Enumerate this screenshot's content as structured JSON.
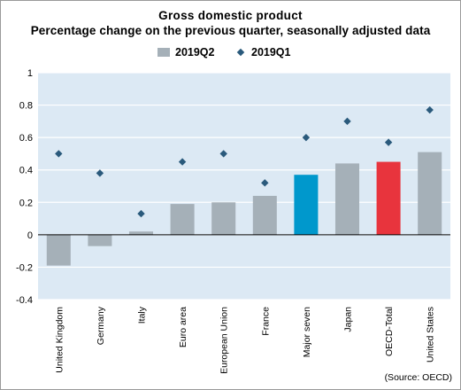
{
  "title": "Gross domestic product",
  "subtitle": "Percentage change on the previous quarter, seasonally adjusted data",
  "source": "(Source: OECD)",
  "legend": {
    "bar_label": "2019Q2",
    "marker_label": "2019Q1"
  },
  "colors": {
    "bar": "#a5b0b8",
    "highlight_blue": "#0098cc",
    "highlight_red": "#e8343d",
    "marker": "#2a5a7c",
    "background": "#dce9f4",
    "grid": "#ffffff"
  },
  "chart_data": {
    "type": "bar",
    "categories": [
      "United Kingdom",
      "Germany",
      "Italy",
      "Euro area",
      "European Union",
      "France",
      "Major seven",
      "Japan",
      "OECD-Total",
      "United States"
    ],
    "series": [
      {
        "name": "2019Q2",
        "kind": "bar",
        "values": [
          -0.19,
          -0.07,
          0.02,
          0.19,
          0.2,
          0.24,
          0.37,
          0.44,
          0.45,
          0.51
        ]
      },
      {
        "name": "2019Q1",
        "kind": "marker",
        "values": [
          0.5,
          0.38,
          0.13,
          0.45,
          0.5,
          0.32,
          0.6,
          0.7,
          0.57,
          0.77
        ]
      }
    ],
    "highlight": {
      "Major seven": "blue",
      "OECD-Total": "red"
    },
    "ylim": [
      -0.4,
      1
    ],
    "yticks": [
      -0.4,
      -0.2,
      0,
      0.2,
      0.4,
      0.6,
      0.8,
      1
    ],
    "ytick_labels": [
      "-0.4",
      "-0.2",
      "0",
      "0.2",
      "0.4",
      "0.6",
      "0.8",
      "1"
    ],
    "grid": true,
    "legend_position": "top"
  }
}
